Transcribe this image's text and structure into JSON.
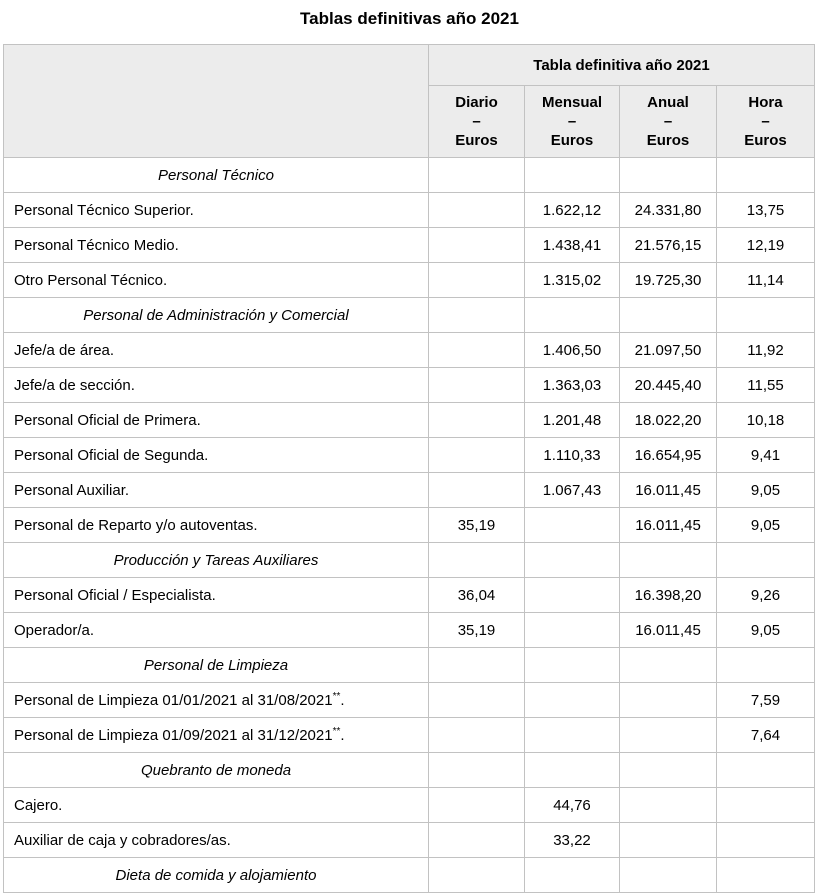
{
  "title": "Tablas definitivas año 2021",
  "colors": {
    "header_bg": "#ececec",
    "border": "#c2c2c2",
    "text": "#000000"
  },
  "table": {
    "group_header": "Tabla definitiva año 2021",
    "columns": [
      {
        "name": "Diario",
        "dash": "–",
        "unit": "Euros"
      },
      {
        "name": "Mensual",
        "dash": "–",
        "unit": "Euros"
      },
      {
        "name": "Anual",
        "dash": "–",
        "unit": "Euros"
      },
      {
        "name": "Hora",
        "dash": "–",
        "unit": "Euros"
      }
    ],
    "rows": [
      {
        "type": "section",
        "label": "Personal Técnico"
      },
      {
        "type": "data",
        "label": "Personal Técnico Superior.",
        "diario": "",
        "mensual": "1.622,12",
        "anual": "24.331,80",
        "hora": "13,75"
      },
      {
        "type": "data",
        "label": "Personal Técnico Medio.",
        "diario": "",
        "mensual": "1.438,41",
        "anual": "21.576,15",
        "hora": "12,19"
      },
      {
        "type": "data",
        "label": "Otro Personal Técnico.",
        "diario": "",
        "mensual": "1.315,02",
        "anual": "19.725,30",
        "hora": "11,14"
      },
      {
        "type": "section",
        "label": "Personal de Administración y Comercial"
      },
      {
        "type": "data",
        "label": "Jefe/a de área.",
        "diario": "",
        "mensual": "1.406,50",
        "anual": "21.097,50",
        "hora": "11,92"
      },
      {
        "type": "data",
        "label": "Jefe/a de sección.",
        "diario": "",
        "mensual": "1.363,03",
        "anual": "20.445,40",
        "hora": "11,55"
      },
      {
        "type": "data",
        "label": "Personal Oficial de Primera.",
        "diario": "",
        "mensual": "1.201,48",
        "anual": "18.022,20",
        "hora": "10,18"
      },
      {
        "type": "data",
        "label": "Personal Oficial de Segunda.",
        "diario": "",
        "mensual": "1.110,33",
        "anual": "16.654,95",
        "hora": "9,41"
      },
      {
        "type": "data",
        "label": "Personal Auxiliar.",
        "diario": "",
        "mensual": "1.067,43",
        "anual": "16.011,45",
        "hora": "9,05"
      },
      {
        "type": "data",
        "label": "Personal de Reparto y/o autoventas.",
        "diario": "35,19",
        "mensual": "",
        "anual": "16.011,45",
        "hora": "9,05"
      },
      {
        "type": "section",
        "label": "Producción y Tareas Auxiliares"
      },
      {
        "type": "data",
        "label": "Personal Oficial / Especialista.",
        "diario": "36,04",
        "mensual": "",
        "anual": "16.398,20",
        "hora": "9,26"
      },
      {
        "type": "data",
        "label": "Operador/a.",
        "diario": "35,19",
        "mensual": "",
        "anual": "16.011,45",
        "hora": "9,05"
      },
      {
        "type": "section",
        "label": "Personal de Limpieza"
      },
      {
        "type": "data",
        "label": "Personal de Limpieza 01/01/2021 al 31/08/2021",
        "sup": "**",
        "after": ".",
        "diario": "",
        "mensual": "",
        "anual": "",
        "hora": "7,59"
      },
      {
        "type": "data",
        "label": "Personal de Limpieza 01/09/2021 al 31/12/2021",
        "sup": "**",
        "after": ".",
        "diario": "",
        "mensual": "",
        "anual": "",
        "hora": "7,64"
      },
      {
        "type": "section",
        "label": "Quebranto de moneda"
      },
      {
        "type": "data",
        "label": "Cajero.",
        "diario": "",
        "mensual": "44,76",
        "anual": "",
        "hora": ""
      },
      {
        "type": "data",
        "label": "Auxiliar de caja y cobradores/as.",
        "diario": "",
        "mensual": "33,22",
        "anual": "",
        "hora": ""
      },
      {
        "type": "section",
        "label": "Dieta de comida y alojamiento"
      }
    ]
  }
}
